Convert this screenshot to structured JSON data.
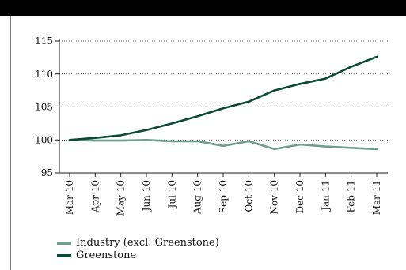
{
  "chart_data": {
    "type": "line",
    "title": "",
    "xlabel": "",
    "ylabel": "",
    "ylim": [
      95,
      115
    ],
    "yticks": [
      "115",
      "110",
      "105",
      "100",
      "95"
    ],
    "categories": [
      "Mar 10",
      "Apr 10",
      "May 10",
      "Jun 10",
      "Jul 10",
      "Aug 10",
      "Sep 10",
      "Oct 10",
      "Nov 10",
      "Dec 10",
      "Jan 11",
      "Feb 11",
      "Mar 11"
    ],
    "series": [
      {
        "name": "Industry (excl. Greenstone)",
        "color": "#6f9e8c",
        "values": [
          100.0,
          99.9,
          99.9,
          100.0,
          99.8,
          99.8,
          99.1,
          99.8,
          98.6,
          99.3,
          99.0,
          98.8,
          98.6
        ]
      },
      {
        "name": "Greenstone",
        "color": "#0b4a36",
        "values": [
          100.0,
          100.3,
          100.7,
          101.5,
          102.5,
          103.6,
          104.8,
          105.8,
          107.5,
          108.5,
          109.3,
          111.1,
          112.6
        ]
      }
    ],
    "grid": "horizontal dotted",
    "legend_position": "bottom-left"
  }
}
